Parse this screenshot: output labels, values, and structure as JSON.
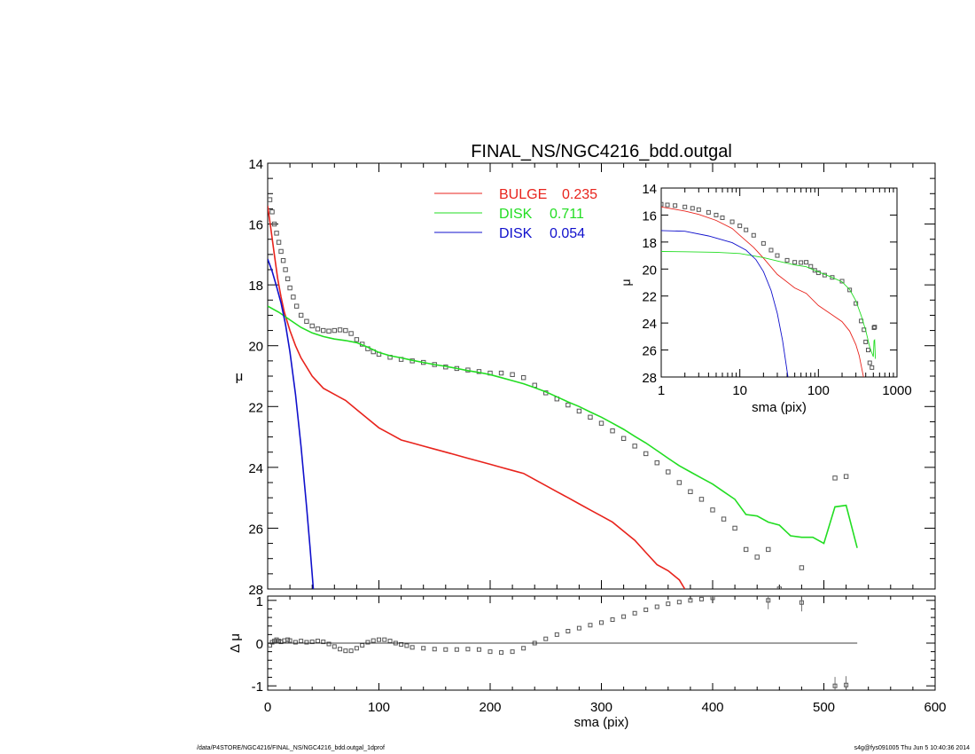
{
  "chart_data": [
    {
      "panel": "main",
      "type": "scatter",
      "title": "FINAL_NS/NGC4216_bdd.outgal",
      "xlabel": "sma (pix)",
      "ylabel": "μ",
      "xlim": [
        0,
        600
      ],
      "ylim": [
        28,
        14
      ],
      "y_inverted": true,
      "x_ticks": [
        "0",
        "100",
        "200",
        "300",
        "400",
        "500",
        "600"
      ],
      "y_ticks": [
        "14",
        "16",
        "18",
        "20",
        "22",
        "24",
        "26",
        "28"
      ],
      "legend_position": "top-center",
      "series": [
        {
          "name": "data",
          "kind": "points",
          "color": "#555555",
          "x": [
            2,
            4,
            6,
            8,
            10,
            12,
            14,
            16,
            18,
            20,
            23,
            26,
            30,
            35,
            40,
            45,
            50,
            55,
            60,
            65,
            70,
            75,
            80,
            85,
            90,
            95,
            100,
            110,
            120,
            130,
            140,
            150,
            160,
            170,
            180,
            190,
            200,
            210,
            220,
            230,
            240,
            250,
            260,
            270,
            280,
            290,
            300,
            310,
            320,
            330,
            340,
            350,
            360,
            370,
            380,
            390,
            400,
            410,
            420,
            430,
            440,
            450,
            460,
            480,
            510,
            520
          ],
          "y": [
            15.2,
            15.6,
            16.0,
            16.3,
            16.6,
            16.9,
            17.2,
            17.5,
            17.8,
            18.1,
            18.4,
            18.7,
            19.0,
            19.2,
            19.35,
            19.45,
            19.5,
            19.52,
            19.5,
            19.48,
            19.5,
            19.6,
            19.8,
            19.95,
            20.1,
            20.2,
            20.28,
            20.38,
            20.45,
            20.5,
            20.55,
            20.62,
            20.7,
            20.75,
            20.8,
            20.85,
            20.9,
            20.9,
            20.95,
            21.05,
            21.3,
            21.55,
            21.75,
            21.95,
            22.15,
            22.35,
            22.55,
            22.8,
            23.05,
            23.3,
            23.55,
            23.85,
            24.15,
            24.5,
            24.8,
            25.05,
            25.4,
            25.7,
            26.0,
            26.7,
            26.95,
            26.7,
            28.0,
            27.3,
            24.35,
            24.3
          ]
        },
        {
          "name": "BULGE 0.235",
          "kind": "line",
          "color": "#e8231c",
          "x": [
            0,
            3,
            6,
            9,
            12,
            15,
            20,
            25,
            30,
            40,
            50,
            60,
            70,
            80,
            90,
            100,
            110,
            120,
            130,
            140,
            150,
            160,
            170,
            180,
            190,
            200,
            210,
            220,
            230,
            240,
            250,
            260,
            270,
            280,
            290,
            300,
            310,
            320,
            330,
            340,
            350,
            360,
            370,
            375
          ],
          "y": [
            15.4,
            16.2,
            17.0,
            17.8,
            18.4,
            18.9,
            19.5,
            20.0,
            20.4,
            21.0,
            21.4,
            21.6,
            21.8,
            22.1,
            22.4,
            22.7,
            22.9,
            23.1,
            23.2,
            23.3,
            23.4,
            23.5,
            23.6,
            23.7,
            23.8,
            23.9,
            24.0,
            24.1,
            24.2,
            24.4,
            24.6,
            24.8,
            25.0,
            25.2,
            25.4,
            25.6,
            25.8,
            26.1,
            26.4,
            26.8,
            27.2,
            27.4,
            27.7,
            28.0
          ]
        },
        {
          "name": "DISK 0.711",
          "kind": "line",
          "color": "#22dd22",
          "x": [
            0,
            10,
            20,
            30,
            40,
            50,
            60,
            70,
            80,
            90,
            100,
            110,
            120,
            130,
            140,
            150,
            160,
            170,
            180,
            190,
            200,
            210,
            220,
            230,
            240,
            250,
            260,
            270,
            280,
            290,
            300,
            310,
            320,
            330,
            340,
            350,
            360,
            370,
            380,
            390,
            400,
            410,
            420,
            430,
            440,
            450,
            460,
            470,
            480,
            490,
            500,
            510,
            520,
            530
          ],
          "y": [
            18.7,
            18.9,
            19.15,
            19.4,
            19.58,
            19.7,
            19.78,
            19.83,
            19.9,
            20.05,
            20.22,
            20.33,
            20.4,
            20.48,
            20.55,
            20.62,
            20.68,
            20.75,
            20.82,
            20.88,
            20.95,
            21.05,
            21.15,
            21.25,
            21.38,
            21.52,
            21.68,
            21.85,
            22.0,
            22.18,
            22.35,
            22.55,
            22.75,
            22.98,
            23.2,
            23.45,
            23.7,
            23.95,
            24.15,
            24.35,
            24.55,
            24.8,
            25.05,
            25.55,
            25.6,
            25.8,
            25.9,
            26.25,
            26.3,
            26.3,
            26.5,
            25.3,
            25.25,
            26.65
          ]
        },
        {
          "name": "DISK 0.054",
          "kind": "line",
          "color": "#1010cc",
          "x": [
            0,
            4,
            8,
            12,
            16,
            20,
            25,
            30,
            35,
            38,
            41
          ],
          "y": [
            17.15,
            17.55,
            18.05,
            18.6,
            19.3,
            20.2,
            21.6,
            23.3,
            25.3,
            26.6,
            28.0
          ]
        }
      ],
      "legend": [
        {
          "label": "BULGE",
          "value": "0.235",
          "color": "#e8231c"
        },
        {
          "label": "DISK",
          "value": "0.711",
          "color": "#22dd22"
        },
        {
          "label": "DISK",
          "value": "0.054",
          "color": "#1010cc"
        }
      ]
    },
    {
      "panel": "residual",
      "type": "scatter",
      "xlabel": "sma (pix)",
      "ylabel": "Δ μ",
      "xlim": [
        0,
        600
      ],
      "ylim": [
        -1.1,
        1.1
      ],
      "y_ticks": [
        "1",
        "0",
        "-1"
      ],
      "series": [
        {
          "name": "residual",
          "kind": "points",
          "color": "#555555",
          "x": [
            2,
            4,
            6,
            8,
            10,
            12,
            15,
            18,
            20,
            25,
            30,
            35,
            40,
            45,
            50,
            55,
            60,
            65,
            70,
            75,
            80,
            85,
            90,
            95,
            100,
            105,
            110,
            115,
            120,
            125,
            130,
            140,
            150,
            160,
            170,
            180,
            190,
            200,
            210,
            220,
            230,
            240,
            250,
            260,
            270,
            280,
            290,
            300,
            310,
            320,
            330,
            340,
            350,
            360,
            370,
            380,
            390,
            400,
            450,
            480,
            510,
            520
          ],
          "y": [
            -0.05,
            0.02,
            0.05,
            0.08,
            0.05,
            0.03,
            0.06,
            0.08,
            0.06,
            0.02,
            0.05,
            0.02,
            0.03,
            0.05,
            0.03,
            -0.02,
            -0.08,
            -0.14,
            -0.18,
            -0.18,
            -0.12,
            -0.05,
            0.02,
            0.06,
            0.08,
            0.08,
            0.05,
            0.0,
            -0.03,
            -0.06,
            -0.1,
            -0.12,
            -0.14,
            -0.15,
            -0.15,
            -0.14,
            -0.15,
            -0.2,
            -0.22,
            -0.2,
            -0.12,
            0.0,
            0.1,
            0.2,
            0.28,
            0.35,
            0.42,
            0.48,
            0.55,
            0.62,
            0.7,
            0.78,
            0.85,
            0.92,
            0.96,
            1.0,
            1.03,
            1.06,
            1.0,
            0.95,
            -1.0,
            -0.98
          ]
        },
        {
          "name": "zero",
          "kind": "line",
          "color": "#000000",
          "x": [
            0,
            530
          ],
          "y": [
            0,
            0
          ]
        }
      ]
    },
    {
      "panel": "inset",
      "type": "line",
      "xlabel": "sma (pix)",
      "ylabel": "μ",
      "x_scale": "log",
      "xlim": [
        1,
        1000
      ],
      "ylim": [
        28,
        14
      ],
      "y_inverted": true,
      "x_ticks": [
        "1",
        "10",
        "100",
        "1000"
      ],
      "y_ticks": [
        "14",
        "16",
        "18",
        "20",
        "22",
        "24",
        "26",
        "28"
      ],
      "series": [
        {
          "name": "data",
          "kind": "points",
          "color": "#555555",
          "x": [
            1,
            1.2,
            1.5,
            2,
            2.5,
            3,
            4,
            5,
            6,
            8,
            10,
            12,
            15,
            20,
            25,
            30,
            40,
            50,
            60,
            70,
            80,
            90,
            100,
            120,
            150,
            200,
            250,
            300,
            350,
            380,
            400,
            430,
            450,
            480,
            510,
            520
          ],
          "y": [
            15.2,
            15.25,
            15.3,
            15.4,
            15.5,
            15.6,
            15.8,
            16.0,
            16.2,
            16.5,
            16.8,
            17.1,
            17.5,
            18.1,
            18.6,
            19.0,
            19.35,
            19.5,
            19.52,
            19.5,
            19.8,
            20.1,
            20.28,
            20.45,
            20.62,
            20.9,
            21.55,
            22.55,
            23.85,
            24.5,
            25.4,
            26.0,
            26.95,
            27.3,
            24.35,
            24.3
          ]
        },
        {
          "name": "BULGE 0.235",
          "kind": "line",
          "color": "#e8231c",
          "x": [
            1,
            2,
            3,
            5,
            8,
            10,
            15,
            20,
            30,
            50,
            70,
            100,
            150,
            200,
            250,
            300,
            330,
            375
          ],
          "y": [
            15.4,
            15.7,
            15.95,
            16.4,
            17.0,
            17.5,
            18.4,
            19.2,
            20.4,
            21.4,
            21.8,
            22.7,
            23.4,
            23.9,
            24.6,
            25.6,
            26.4,
            28.0
          ]
        },
        {
          "name": "DISK 0.711",
          "kind": "line",
          "color": "#22dd22",
          "x": [
            1,
            2,
            5,
            10,
            20,
            30,
            50,
            70,
            100,
            150,
            200,
            250,
            300,
            350,
            400,
            450,
            500,
            510,
            520,
            530
          ],
          "y": [
            18.7,
            18.72,
            18.76,
            18.85,
            19.15,
            19.4,
            19.7,
            19.83,
            20.22,
            20.62,
            20.95,
            21.52,
            22.35,
            23.45,
            24.55,
            25.8,
            26.5,
            25.3,
            25.25,
            26.65
          ]
        },
        {
          "name": "DISK 0.054",
          "kind": "line",
          "color": "#1010cc",
          "x": [
            1,
            2,
            4,
            8,
            12,
            16,
            20,
            25,
            30,
            35,
            41
          ],
          "y": [
            17.15,
            17.2,
            17.55,
            18.05,
            18.6,
            19.3,
            20.2,
            21.6,
            23.3,
            25.3,
            28.0
          ]
        }
      ]
    }
  ],
  "footer": {
    "left": "/data/P4STORE/NGC4216/FINAL_NS/NGC4216_bdd.outgal_1dprof",
    "right": "s4g@fys091005  Thu Jun  5 10:40:36 2014"
  }
}
